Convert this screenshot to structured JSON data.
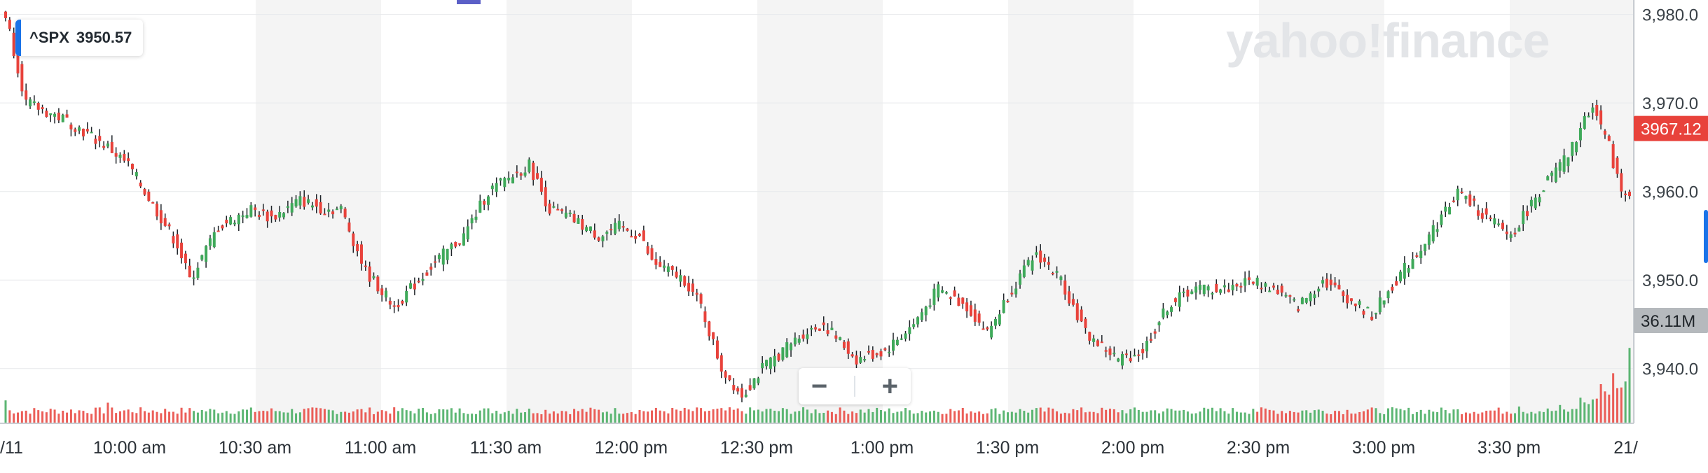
{
  "ticker": {
    "symbol": "^SPX",
    "value": "3950.57"
  },
  "watermark": "yahoo!finance",
  "zoom": {
    "minus": "−",
    "plus": "+"
  },
  "colors": {
    "up": "#3fa95a",
    "down": "#e8423b",
    "wick": "#1f2429",
    "band": "#f4f4f4",
    "price_tag": "#e8423b",
    "volume_tag": "#b5b9bd"
  },
  "chart_data": {
    "type": "candlestick",
    "ylim": [
      3935,
      3981
    ],
    "y_ticks": [
      "3,940.0",
      "3,950.0",
      "3,960.0",
      "3,970.0",
      "3,980.0"
    ],
    "x_ticks": [
      "/11",
      "10:00 am",
      "10:30 am",
      "11:00 am",
      "11:30 am",
      "12:00 pm",
      "12:30 pm",
      "1:00 pm",
      "1:30 pm",
      "2:00 pm",
      "2:30 pm",
      "3:00 pm",
      "3:30 pm",
      "21/"
    ],
    "last_price_label": "3967.12",
    "volume_label": "36.11M",
    "price_path": [
      [
        0,
        3980
      ],
      [
        5,
        3970
      ],
      [
        15,
        3968
      ],
      [
        25,
        3965
      ],
      [
        30,
        3963
      ],
      [
        38,
        3957
      ],
      [
        42,
        3954
      ],
      [
        45,
        3950
      ],
      [
        52,
        3956
      ],
      [
        60,
        3958
      ],
      [
        65,
        3957
      ],
      [
        72,
        3959
      ],
      [
        78,
        3958
      ],
      [
        82,
        3958
      ],
      [
        88,
        3951
      ],
      [
        95,
        3947
      ],
      [
        105,
        3952
      ],
      [
        112,
        3955
      ],
      [
        118,
        3960
      ],
      [
        128,
        3963
      ],
      [
        133,
        3958
      ],
      [
        138,
        3957
      ],
      [
        145,
        3955
      ],
      [
        150,
        3956
      ],
      [
        155,
        3955
      ],
      [
        158,
        3952
      ],
      [
        162,
        3951
      ],
      [
        166,
        3950
      ],
      [
        170,
        3947
      ],
      [
        175,
        3940
      ],
      [
        180,
        3937
      ],
      [
        185,
        3940
      ],
      [
        190,
        3942
      ],
      [
        195,
        3944
      ],
      [
        200,
        3945
      ],
      [
        208,
        3941
      ],
      [
        215,
        3942
      ],
      [
        222,
        3945
      ],
      [
        228,
        3949
      ],
      [
        235,
        3947
      ],
      [
        240,
        3944
      ],
      [
        246,
        3949
      ],
      [
        252,
        3953
      ],
      [
        258,
        3950
      ],
      [
        264,
        3944
      ],
      [
        272,
        3941
      ],
      [
        278,
        3942
      ],
      [
        284,
        3947
      ],
      [
        290,
        3949
      ],
      [
        298,
        3949
      ],
      [
        305,
        3950
      ],
      [
        310,
        3949
      ],
      [
        316,
        3947
      ],
      [
        322,
        3950
      ],
      [
        328,
        3948
      ],
      [
        334,
        3946
      ],
      [
        340,
        3950
      ],
      [
        348,
        3955
      ],
      [
        355,
        3960
      ],
      [
        362,
        3957
      ],
      [
        368,
        3955
      ],
      [
        375,
        3960
      ],
      [
        382,
        3964
      ],
      [
        388,
        3970
      ],
      [
        392,
        3965
      ],
      [
        395,
        3960
      ],
      [
        397,
        3960
      ]
    ],
    "total_minutes": 397,
    "volume_spikes": {
      "0": 0.9,
      "25": 0.75,
      "125": 0.35,
      "175": 0.4,
      "305": 0.35,
      "370": 0.5,
      "380": 0.6,
      "385": 0.8,
      "390": 1.0,
      "393": 1.3,
      "397": 2.4
    }
  }
}
